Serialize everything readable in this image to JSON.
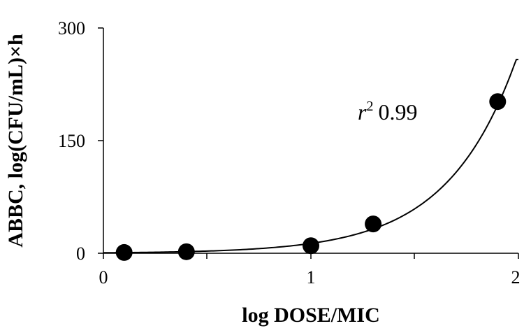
{
  "chart_data": {
    "type": "scatter",
    "title": "",
    "xlabel": "log DOSE/MIC",
    "ylabel": "ABBC, log(CFU/mL)×h",
    "xlim": [
      0,
      2
    ],
    "ylim": [
      0,
      300
    ],
    "x_ticks": [
      "0",
      "1",
      "2"
    ],
    "y_ticks": [
      "0",
      "150",
      "300"
    ],
    "x_minor_ticks": [
      0.5,
      1.5
    ],
    "grid": false,
    "legend": "none",
    "points": {
      "x": [
        0.1,
        0.4,
        1.0,
        1.3,
        1.9
      ],
      "y": [
        1,
        2,
        10,
        39,
        202
      ]
    },
    "fit_curve": {
      "type": "exponential",
      "color": "#000000"
    },
    "annotation": {
      "r_symbol": "r",
      "r_exponent": "2",
      "r_value": "0.99"
    },
    "marker_color": "#000000"
  }
}
